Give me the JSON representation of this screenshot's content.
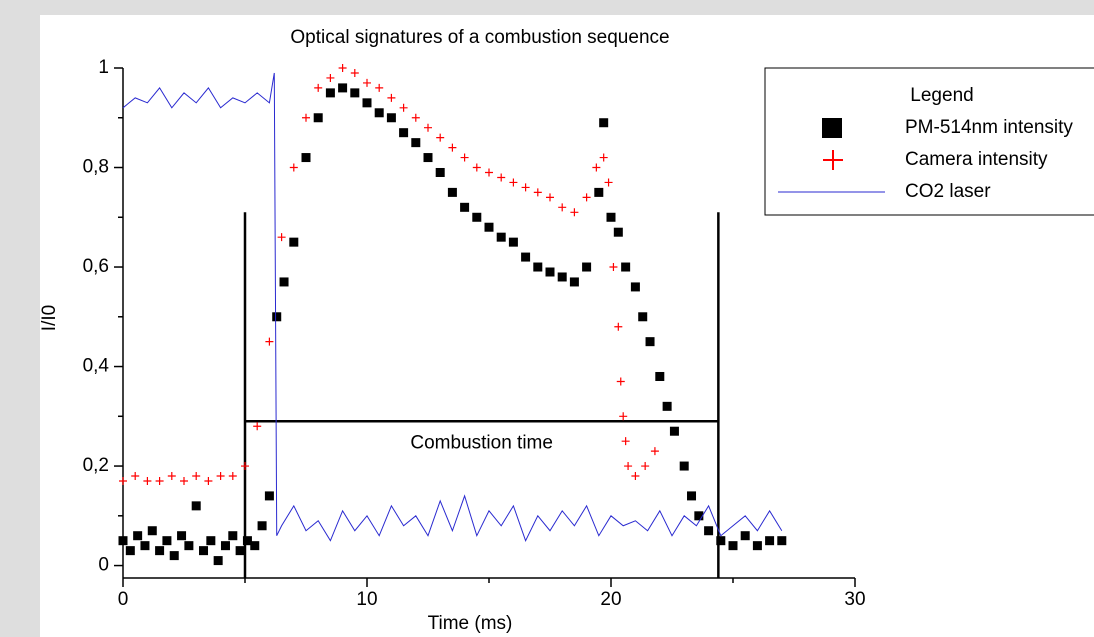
{
  "chart_data": {
    "type": "scatter",
    "title": "Optical signatures of a combustion sequence",
    "x_label": "Time (ms)",
    "y_label": "I/I0",
    "xlim": [
      0,
      30
    ],
    "ylim": [
      -0.025,
      1.0
    ],
    "xticks": [
      0,
      10,
      20,
      30
    ],
    "xminorticks": [
      5,
      15,
      25
    ],
    "yticks": [
      0,
      {
        "value": 0.2,
        "label": "0,2"
      },
      {
        "value": 0.4,
        "label": "0,4"
      },
      {
        "value": 0.6,
        "label": "0,6"
      },
      {
        "value": 0.8,
        "label": "0,8"
      },
      1
    ],
    "yminorticks": [
      0.1,
      0.3,
      0.5,
      0.7,
      0.9
    ],
    "legend_title": "Legend",
    "legend": "upper right",
    "series": [
      {
        "name": "PM-514nm intensity",
        "color": "#000000",
        "marker": "square",
        "x": [
          0,
          0.3,
          0.6,
          0.9,
          1.2,
          1.5,
          1.8,
          2.1,
          2.4,
          2.7,
          3.0,
          3.3,
          3.6,
          3.9,
          4.2,
          4.5,
          4.8,
          5.1,
          5.4,
          5.7,
          6.0,
          6.3,
          6.6,
          7.0,
          7.5,
          8.0,
          8.5,
          9.0,
          9.5,
          10.0,
          10.5,
          11.0,
          11.5,
          12.0,
          12.5,
          13.0,
          13.5,
          14.0,
          14.5,
          15.0,
          15.5,
          16.0,
          16.5,
          17.0,
          17.5,
          18.0,
          18.5,
          19.0,
          19.5,
          19.7,
          20.0,
          20.3,
          20.6,
          21.0,
          21.3,
          21.6,
          22.0,
          22.3,
          22.6,
          23.0,
          23.3,
          23.6,
          24.0,
          24.5,
          25.0,
          25.5,
          26.0,
          26.5,
          27.0
        ],
        "values": [
          0.05,
          0.03,
          0.06,
          0.04,
          0.07,
          0.03,
          0.05,
          0.02,
          0.06,
          0.04,
          0.12,
          0.03,
          0.05,
          0.01,
          0.04,
          0.06,
          0.03,
          0.05,
          0.04,
          0.08,
          0.14,
          0.5,
          0.57,
          0.65,
          0.82,
          0.9,
          0.95,
          0.96,
          0.95,
          0.93,
          0.91,
          0.9,
          0.87,
          0.85,
          0.82,
          0.79,
          0.75,
          0.72,
          0.7,
          0.68,
          0.66,
          0.65,
          0.62,
          0.6,
          0.59,
          0.58,
          0.57,
          0.6,
          0.75,
          0.89,
          0.7,
          0.67,
          0.6,
          0.56,
          0.5,
          0.45,
          0.38,
          0.32,
          0.27,
          0.2,
          0.14,
          0.1,
          0.07,
          0.05,
          0.04,
          0.06,
          0.04,
          0.05,
          0.05
        ]
      },
      {
        "name": "Camera intensity",
        "color": "#ff0000",
        "marker": "cross",
        "x": [
          0,
          0.5,
          1.0,
          1.5,
          2.0,
          2.5,
          3.0,
          3.5,
          4.0,
          4.5,
          5.0,
          5.5,
          6.0,
          6.5,
          7.0,
          7.5,
          8.0,
          8.5,
          9.0,
          9.5,
          10.0,
          10.5,
          11.0,
          11.5,
          12.0,
          12.5,
          13.0,
          13.5,
          14.0,
          14.5,
          15.0,
          15.5,
          16.0,
          16.5,
          17.0,
          17.5,
          18.0,
          18.5,
          19.0,
          19.4,
          19.7,
          19.9,
          20.1,
          20.3,
          20.4,
          20.5,
          20.6,
          20.7,
          21.0,
          21.4,
          21.8
        ],
        "values": [
          0.17,
          0.18,
          0.17,
          0.17,
          0.18,
          0.17,
          0.18,
          0.17,
          0.18,
          0.18,
          0.2,
          0.28,
          0.45,
          0.66,
          0.8,
          0.9,
          0.96,
          0.98,
          1.0,
          0.99,
          0.97,
          0.96,
          0.94,
          0.92,
          0.9,
          0.88,
          0.86,
          0.84,
          0.82,
          0.8,
          0.79,
          0.78,
          0.77,
          0.76,
          0.75,
          0.74,
          0.72,
          0.71,
          0.74,
          0.8,
          0.82,
          0.77,
          0.6,
          0.48,
          0.37,
          0.3,
          0.25,
          0.2,
          0.18,
          0.2,
          0.23
        ]
      },
      {
        "name": "CO2 laser",
        "color": "#2a2ad0",
        "marker": "line",
        "x": [
          0,
          0.5,
          1.0,
          1.5,
          2.0,
          2.5,
          3.0,
          3.5,
          4.0,
          4.5,
          5.0,
          5.5,
          6.0,
          6.2,
          6.3,
          6.5,
          7.0,
          7.5,
          8.0,
          8.5,
          9.0,
          9.5,
          10.0,
          10.5,
          11.0,
          11.5,
          12.0,
          12.5,
          13.0,
          13.5,
          14.0,
          14.5,
          15.0,
          15.5,
          16.0,
          16.5,
          17.0,
          17.5,
          18.0,
          18.5,
          19.0,
          19.5,
          20.0,
          20.5,
          21.0,
          21.5,
          22.0,
          22.5,
          23.0,
          23.5,
          24.0,
          24.5,
          25.0,
          25.5,
          26.0,
          26.5,
          27.0
        ],
        "values": [
          0.92,
          0.94,
          0.93,
          0.96,
          0.92,
          0.95,
          0.93,
          0.96,
          0.92,
          0.94,
          0.93,
          0.95,
          0.93,
          0.99,
          0.06,
          0.08,
          0.12,
          0.07,
          0.09,
          0.05,
          0.11,
          0.07,
          0.1,
          0.06,
          0.12,
          0.08,
          0.1,
          0.06,
          0.13,
          0.07,
          0.14,
          0.06,
          0.11,
          0.08,
          0.12,
          0.05,
          0.1,
          0.07,
          0.11,
          0.08,
          0.12,
          0.06,
          0.1,
          0.08,
          0.09,
          0.07,
          0.11,
          0.06,
          0.1,
          0.08,
          0.12,
          0.06,
          0.08,
          0.1,
          0.07,
          0.11,
          0.07
        ]
      }
    ],
    "annotation": {
      "text": "Combustion time",
      "start": 5,
      "end": 24.4,
      "level": 0.29,
      "top": 0.71
    }
  }
}
